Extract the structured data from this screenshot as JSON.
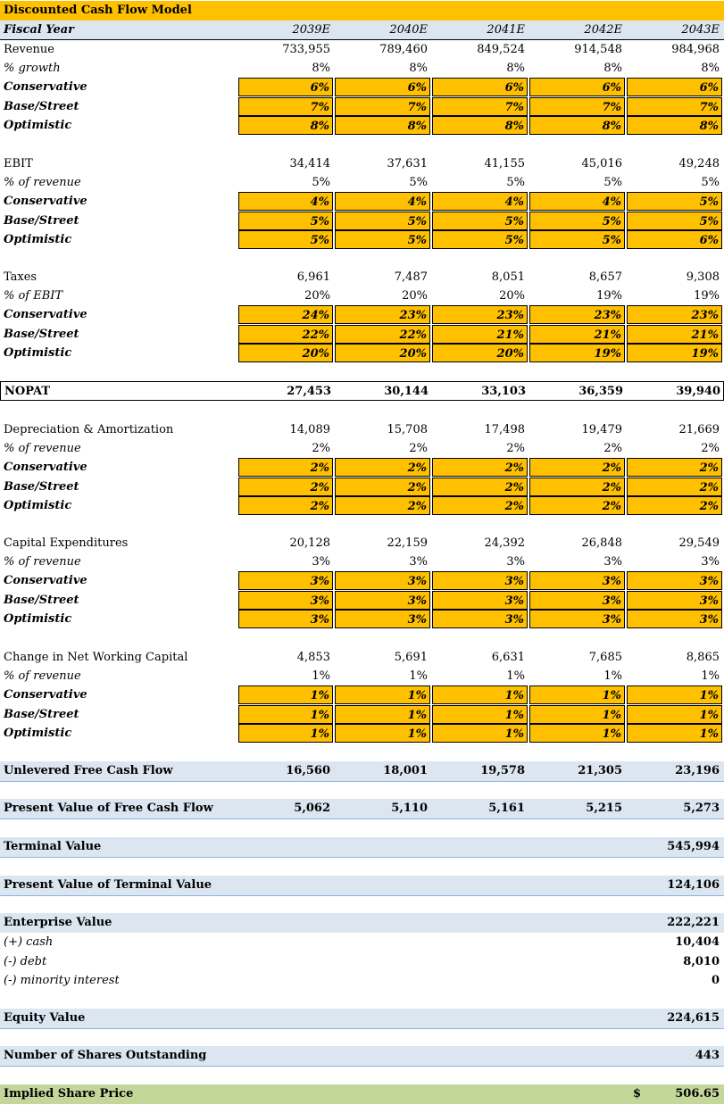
{
  "title": "Discounted Cash Flow Model",
  "header": {
    "label": "Fiscal Year",
    "years": [
      "2039E",
      "2040E",
      "2041E",
      "2042E",
      "2043E"
    ]
  },
  "revenue": {
    "label": "Revenue",
    "values": [
      "733,955",
      "789,460",
      "849,524",
      "914,548",
      "984,968"
    ],
    "pct_label": "% growth",
    "pct": [
      "8%",
      "8%",
      "8%",
      "8%",
      "8%"
    ],
    "scenarios": [
      {
        "label": "Conservative",
        "values": [
          "6%",
          "6%",
          "6%",
          "6%",
          "6%"
        ]
      },
      {
        "label": "Base/Street",
        "values": [
          "7%",
          "7%",
          "7%",
          "7%",
          "7%"
        ]
      },
      {
        "label": "Optimistic",
        "values": [
          "8%",
          "8%",
          "8%",
          "8%",
          "8%"
        ]
      }
    ]
  },
  "ebit": {
    "label": "EBIT",
    "values": [
      "34,414",
      "37,631",
      "41,155",
      "45,016",
      "49,248"
    ],
    "pct_label": "% of revenue",
    "pct": [
      "5%",
      "5%",
      "5%",
      "5%",
      "5%"
    ],
    "scenarios": [
      {
        "label": "Conservative",
        "values": [
          "4%",
          "4%",
          "4%",
          "4%",
          "5%"
        ]
      },
      {
        "label": "Base/Street",
        "values": [
          "5%",
          "5%",
          "5%",
          "5%",
          "5%"
        ]
      },
      {
        "label": "Optimistic",
        "values": [
          "5%",
          "5%",
          "5%",
          "5%",
          "6%"
        ]
      }
    ]
  },
  "taxes": {
    "label": "Taxes",
    "values": [
      "6,961",
      "7,487",
      "8,051",
      "8,657",
      "9,308"
    ],
    "pct_label": "% of EBIT",
    "pct": [
      "20%",
      "20%",
      "20%",
      "19%",
      "19%"
    ],
    "scenarios": [
      {
        "label": "Conservative",
        "values": [
          "24%",
          "23%",
          "23%",
          "23%",
          "23%"
        ]
      },
      {
        "label": "Base/Street",
        "values": [
          "22%",
          "22%",
          "21%",
          "21%",
          "21%"
        ]
      },
      {
        "label": "Optimistic",
        "values": [
          "20%",
          "20%",
          "20%",
          "19%",
          "19%"
        ]
      }
    ]
  },
  "nopat": {
    "label": "NOPAT",
    "values": [
      "27,453",
      "30,144",
      "33,103",
      "36,359",
      "39,940"
    ]
  },
  "da": {
    "label": "Depreciation & Amortization",
    "values": [
      "14,089",
      "15,708",
      "17,498",
      "19,479",
      "21,669"
    ],
    "pct_label": "% of revenue",
    "pct": [
      "2%",
      "2%",
      "2%",
      "2%",
      "2%"
    ],
    "scenarios": [
      {
        "label": "Conservative",
        "values": [
          "2%",
          "2%",
          "2%",
          "2%",
          "2%"
        ]
      },
      {
        "label": "Base/Street",
        "values": [
          "2%",
          "2%",
          "2%",
          "2%",
          "2%"
        ]
      },
      {
        "label": "Optimistic",
        "values": [
          "2%",
          "2%",
          "2%",
          "2%",
          "2%"
        ]
      }
    ]
  },
  "capex": {
    "label": "Capital Expenditures",
    "values": [
      "20,128",
      "22,159",
      "24,392",
      "26,848",
      "29,549"
    ],
    "pct_label": "% of revenue",
    "pct": [
      "3%",
      "3%",
      "3%",
      "3%",
      "3%"
    ],
    "scenarios": [
      {
        "label": "Conservative",
        "values": [
          "3%",
          "3%",
          "3%",
          "3%",
          "3%"
        ]
      },
      {
        "label": "Base/Street",
        "values": [
          "3%",
          "3%",
          "3%",
          "3%",
          "3%"
        ]
      },
      {
        "label": "Optimistic",
        "values": [
          "3%",
          "3%",
          "3%",
          "3%",
          "3%"
        ]
      }
    ]
  },
  "nwc": {
    "label": "Change in Net Working Capital",
    "values": [
      "4,853",
      "5,691",
      "6,631",
      "7,685",
      "8,865"
    ],
    "pct_label": "% of revenue",
    "pct": [
      "1%",
      "1%",
      "1%",
      "1%",
      "1%"
    ],
    "scenarios": [
      {
        "label": "Conservative",
        "values": [
          "1%",
          "1%",
          "1%",
          "1%",
          "1%"
        ]
      },
      {
        "label": "Base/Street",
        "values": [
          "1%",
          "1%",
          "1%",
          "1%",
          "1%"
        ]
      },
      {
        "label": "Optimistic",
        "values": [
          "1%",
          "1%",
          "1%",
          "1%",
          "1%"
        ]
      }
    ]
  },
  "ufcf": {
    "label": "Unlevered Free Cash Flow",
    "values": [
      "16,560",
      "18,001",
      "19,578",
      "21,305",
      "23,196"
    ]
  },
  "pvfcf": {
    "label": "Present Value of Free Cash Flow",
    "values": [
      "5,062",
      "5,110",
      "5,161",
      "5,215",
      "5,273"
    ]
  },
  "summary": {
    "terminal_value": {
      "label": "Terminal Value",
      "value": "545,994"
    },
    "pv_terminal": {
      "label": "Present Value of Terminal Value",
      "value": "124,106"
    },
    "enterprise_value": {
      "label": "Enterprise Value",
      "value": "222,221"
    },
    "cash": {
      "label": "(+) cash",
      "value": "10,404"
    },
    "debt": {
      "label": "(-) debt",
      "value": "8,010"
    },
    "minority": {
      "label": "(-) minority interest",
      "value": "0"
    },
    "equity_value": {
      "label": "Equity Value",
      "value": "224,615"
    },
    "shares": {
      "label": "Number of Shares Outstanding",
      "value": "443"
    },
    "price": {
      "label": "Implied Share Price",
      "currency": "$",
      "value": "506.65"
    }
  },
  "colors": {
    "gold": "#ffc000",
    "header_blue": "#dce6f1",
    "green": "#c4d79b"
  }
}
